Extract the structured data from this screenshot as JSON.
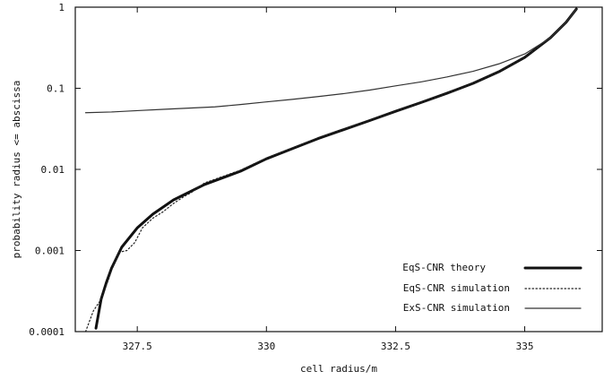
{
  "chart_data": {
    "type": "line",
    "title": "",
    "xlabel": "cell radius/m",
    "ylabel": "probability radius <= abscissa",
    "xlim": [
      326.3,
      336.5
    ],
    "ylim": [
      0.0001,
      1
    ],
    "y_scale": "log",
    "grid": false,
    "legend_position": "bottom-right",
    "x_ticks": [
      {
        "value": 327.5,
        "label": "327.5"
      },
      {
        "value": 330,
        "label": "330"
      },
      {
        "value": 332.5,
        "label": "332.5"
      },
      {
        "value": 335,
        "label": "335"
      }
    ],
    "y_ticks": [
      {
        "value": 1,
        "label": "1"
      },
      {
        "value": 0.1,
        "label": "0.1"
      },
      {
        "value": 0.01,
        "label": "0.01"
      },
      {
        "value": 0.001,
        "label": "0.001"
      },
      {
        "value": 0.0001,
        "label": "0.0001"
      }
    ],
    "series": [
      {
        "name": "EqS-CNR theory",
        "style": "solid-thick",
        "color": "#111111",
        "points": [
          [
            326.7,
            0.00011
          ],
          [
            326.8,
            0.00025
          ],
          [
            326.9,
            0.0004
          ],
          [
            327.0,
            0.0006
          ],
          [
            327.2,
            0.0011
          ],
          [
            327.5,
            0.0019
          ],
          [
            327.8,
            0.0028
          ],
          [
            328.2,
            0.0042
          ],
          [
            328.8,
            0.0065
          ],
          [
            329.5,
            0.0095
          ],
          [
            330.0,
            0.0135
          ],
          [
            330.5,
            0.018
          ],
          [
            331.0,
            0.024
          ],
          [
            331.5,
            0.031
          ],
          [
            332.0,
            0.04
          ],
          [
            332.5,
            0.052
          ],
          [
            333.0,
            0.067
          ],
          [
            333.5,
            0.087
          ],
          [
            334.0,
            0.115
          ],
          [
            334.5,
            0.16
          ],
          [
            335.0,
            0.24
          ],
          [
            335.5,
            0.42
          ],
          [
            335.8,
            0.65
          ],
          [
            336.0,
            0.95
          ]
        ]
      },
      {
        "name": "EqS-CNR simulation",
        "style": "dotted",
        "color": "#222222",
        "points": [
          [
            326.5,
            0.0001
          ],
          [
            326.65,
            0.00018
          ],
          [
            326.8,
            0.00025
          ],
          [
            326.95,
            0.00045
          ],
          [
            327.05,
            0.0007
          ],
          [
            327.15,
            0.00095
          ],
          [
            327.3,
            0.001
          ],
          [
            327.45,
            0.00125
          ],
          [
            327.6,
            0.0019
          ],
          [
            327.8,
            0.0025
          ],
          [
            328.0,
            0.003
          ],
          [
            328.2,
            0.0038
          ],
          [
            328.4,
            0.0046
          ],
          [
            328.55,
            0.0052
          ],
          [
            328.8,
            0.0068
          ],
          [
            329.5,
            0.0098
          ],
          [
            330.0,
            0.0138
          ],
          [
            330.5,
            0.0182
          ],
          [
            331.0,
            0.0245
          ],
          [
            331.5,
            0.0312
          ],
          [
            332.0,
            0.0402
          ],
          [
            332.5,
            0.052
          ],
          [
            333.0,
            0.067
          ],
          [
            333.5,
            0.087
          ],
          [
            334.0,
            0.115
          ],
          [
            334.5,
            0.16
          ],
          [
            335.0,
            0.24
          ],
          [
            335.5,
            0.42
          ],
          [
            335.8,
            0.65
          ],
          [
            336.0,
            0.95
          ]
        ]
      },
      {
        "name": "ExS-CNR simulation",
        "style": "solid-thin",
        "color": "#333333",
        "points": [
          [
            326.5,
            0.05
          ],
          [
            327.0,
            0.051
          ],
          [
            327.5,
            0.053
          ],
          [
            328.0,
            0.055
          ],
          [
            328.5,
            0.057
          ],
          [
            329.0,
            0.059
          ],
          [
            329.5,
            0.063
          ],
          [
            330.0,
            0.068
          ],
          [
            330.5,
            0.073
          ],
          [
            331.0,
            0.079
          ],
          [
            331.5,
            0.086
          ],
          [
            332.0,
            0.095
          ],
          [
            332.5,
            0.107
          ],
          [
            333.0,
            0.12
          ],
          [
            333.5,
            0.138
          ],
          [
            334.0,
            0.162
          ],
          [
            334.5,
            0.2
          ],
          [
            335.0,
            0.265
          ],
          [
            335.5,
            0.42
          ],
          [
            335.8,
            0.65
          ],
          [
            336.0,
            0.95
          ]
        ]
      }
    ]
  }
}
